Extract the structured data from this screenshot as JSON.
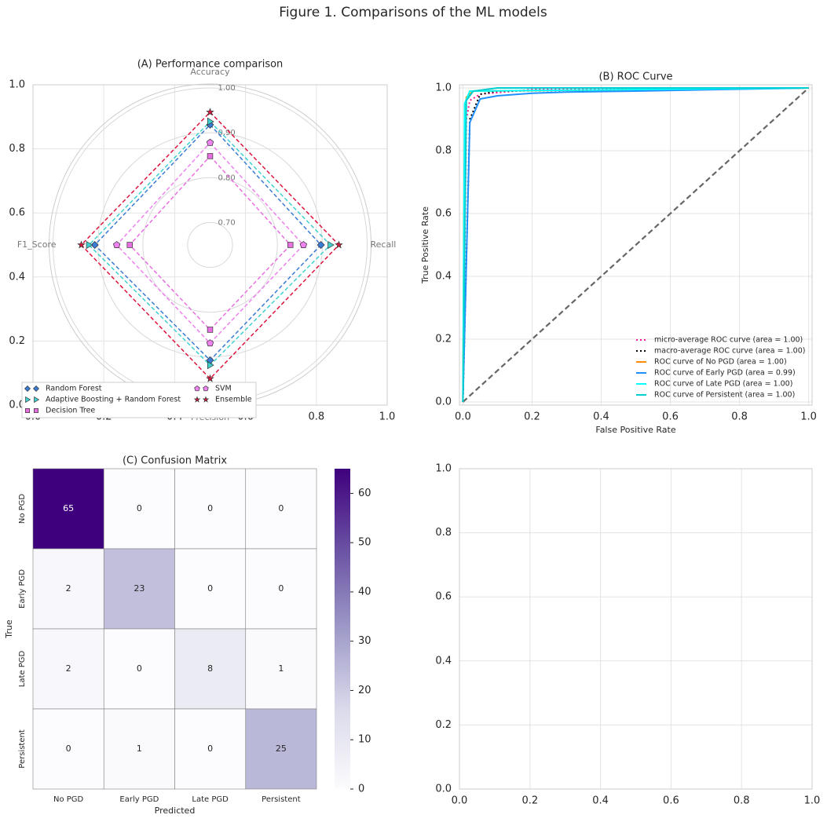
{
  "title": "Figure 1. Comparisons of the ML models",
  "chart_data": [
    {
      "type": "radar",
      "title": "(A) Performance comparison",
      "axes": [
        "Accuracy",
        "Recall",
        "Precision",
        "F1_Score"
      ],
      "rlim": [
        0.65,
        1.0
      ],
      "rticks": [
        {
          "value": 0.7,
          "label": "0.70"
        },
        {
          "value": 0.8,
          "label": "0.80"
        },
        {
          "value": 0.9,
          "label": "0.90"
        },
        {
          "value": 1.0,
          "label": "1.00"
        }
      ],
      "series": [
        {
          "name": "Random Forest",
          "color": "#3a7bd5",
          "marker": "diamond",
          "values": [
            0.918,
            0.897,
            0.907,
            0.907
          ]
        },
        {
          "name": "Adaptive Boosting + Random Forest",
          "color": "#3fcfcf",
          "marker": "triangle",
          "values": [
            0.925,
            0.918,
            0.918,
            0.92
          ]
        },
        {
          "name": "Decision Tree",
          "color": "#e86fe0",
          "marker": "square",
          "values": [
            0.848,
            0.829,
            0.839,
            0.829
          ]
        },
        {
          "name": "SVM",
          "color": "#ee82ee",
          "marker": "pentagon",
          "values": [
            0.878,
            0.858,
            0.869,
            0.858
          ]
        },
        {
          "name": "Ensemble",
          "color": "#dc143c",
          "marker": "star",
          "values": [
            0.946,
            0.937,
            0.948,
            0.937
          ]
        }
      ],
      "xlim": [
        0,
        1
      ],
      "ylim": [
        0,
        1
      ],
      "xticks": [
        {
          "value": 0,
          "label": "0.0"
        },
        0.2,
        0.4,
        0.6,
        0.8,
        {
          "value": 1,
          "label": "1.0"
        }
      ],
      "yticks": [
        {
          "value": 0,
          "label": "0.0"
        },
        0.2,
        0.4,
        0.6,
        0.8,
        {
          "value": 1,
          "label": "1.0"
        }
      ],
      "grid": true,
      "legend": "lower left"
    },
    {
      "type": "line",
      "title": "(B) ROC Curve",
      "xlabel": "False Positive Rate",
      "ylabel": "True Positive Rate",
      "xlim": [
        -0.01,
        1.01
      ],
      "ylim": [
        -0.01,
        1.01
      ],
      "xticks": [
        {
          "value": 0,
          "label": "0.0"
        },
        0.2,
        0.4,
        0.6,
        0.8,
        {
          "value": 1,
          "label": "1.0"
        }
      ],
      "yticks": [
        {
          "value": 0,
          "label": "0.0"
        },
        0.2,
        0.4,
        0.6,
        0.8,
        {
          "value": 1,
          "label": "1.0"
        }
      ],
      "grid": true,
      "diagonal": true,
      "legend": "lower right",
      "series": [
        {
          "name": "micro-average ROC curve (area = 1.00)",
          "color": "#ff1493",
          "linestyle": "dotted",
          "x": [
            0,
            0.01,
            0.02,
            0.05,
            0.2,
            1
          ],
          "values": [
            0,
            0.9,
            0.96,
            0.98,
            0.995,
            1
          ]
        },
        {
          "name": "macro-average ROC curve (area = 1.00)",
          "color": "#000000",
          "linestyle": "dotted",
          "x": [
            0,
            0.02,
            0.05,
            0.1,
            1
          ],
          "values": [
            0,
            0.9,
            0.98,
            0.99,
            1
          ]
        },
        {
          "name": "ROC curve of No PGD (area = 1.00)",
          "color": "#ff8c00",
          "linestyle": "solid",
          "x": [
            0,
            0.005,
            0.01,
            0.03,
            1
          ],
          "values": [
            0,
            0.9,
            0.97,
            0.99,
            1
          ]
        },
        {
          "name": "ROC curve of Early PGD (area = 0.99)",
          "color": "#1e90ff",
          "linestyle": "solid",
          "x": [
            0,
            0.02,
            0.05,
            0.1,
            0.2,
            0.3,
            0.5,
            1
          ],
          "values": [
            0,
            0.89,
            0.965,
            0.975,
            0.983,
            0.987,
            0.99,
            1
          ]
        },
        {
          "name": "ROC curve of Late PGD (area = 1.00)",
          "color": "#00ffff",
          "linestyle": "solid",
          "x": [
            0,
            0.005,
            0.02,
            1
          ],
          "values": [
            0,
            0.95,
            0.99,
            1
          ]
        },
        {
          "name": "ROC curve of Persistent (area = 1.00)",
          "color": "#00ced1",
          "linestyle": "solid",
          "x": [
            0,
            0.01,
            0.03,
            0.1,
            1
          ],
          "values": [
            0,
            0.96,
            0.99,
            1,
            1
          ]
        }
      ]
    },
    {
      "type": "heatmap",
      "title": "(C) Confusion Matrix",
      "xlabel": "Predicted",
      "ylabel": "True",
      "x_categories": [
        "No PGD",
        "Early PGD",
        "Late PGD",
        "Persistent"
      ],
      "y_categories": [
        "No PGD",
        "Early PGD",
        "Late PGD",
        "Persistent"
      ],
      "values": [
        [
          65,
          0,
          0,
          0
        ],
        [
          2,
          23,
          0,
          0
        ],
        [
          2,
          0,
          8,
          1
        ],
        [
          0,
          1,
          0,
          25
        ]
      ],
      "zlim": [
        0,
        65
      ],
      "cbar_ticks": [
        0,
        10,
        20,
        30,
        40,
        50,
        60
      ],
      "colormap": "Purples"
    },
    {
      "type": "line",
      "xlim": [
        0,
        1
      ],
      "ylim": [
        0,
        1
      ],
      "xticks": [
        {
          "value": 0,
          "label": "0.0"
        },
        0.2,
        0.4,
        0.6,
        0.8,
        {
          "value": 1,
          "label": "1.0"
        }
      ],
      "yticks": [
        {
          "value": 0,
          "label": "0.0"
        },
        0.2,
        0.4,
        0.6,
        0.8,
        {
          "value": 1,
          "label": "1.0"
        }
      ],
      "grid": true
    }
  ]
}
